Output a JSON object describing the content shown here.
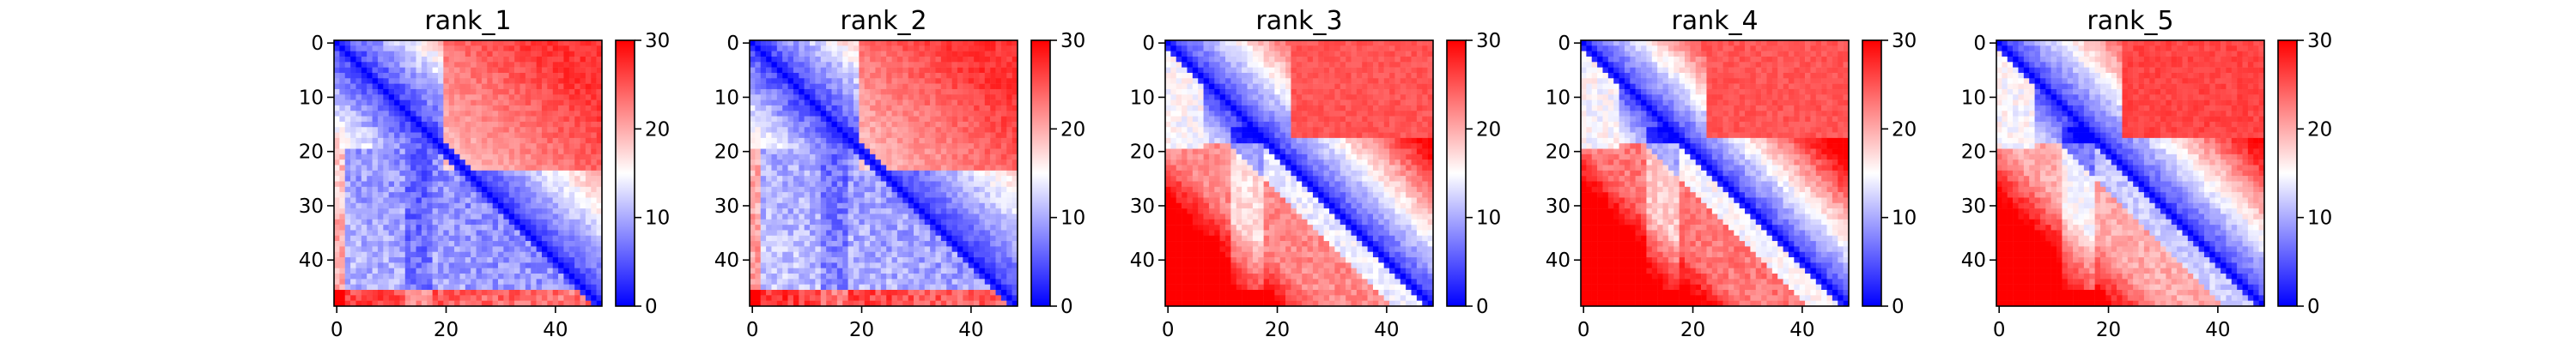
{
  "chart_data": [
    {
      "type": "heatmap",
      "title": "rank_1",
      "rows": 49,
      "cols": 49,
      "xlim": [
        0,
        48
      ],
      "ylim": [
        48,
        0
      ],
      "x_ticks": [
        0,
        20,
        40
      ],
      "y_ticks": [
        0,
        10,
        20,
        30,
        40
      ],
      "colorbar": {
        "min": 0,
        "max": 30,
        "ticks": [
          0,
          10,
          20,
          30
        ],
        "colormap": "bwr",
        "low_color": "#0000ff",
        "mid_color": "#ffffff",
        "high_color": "#ff0000"
      },
      "pattern": {
        "variant": 1,
        "block_size": 19,
        "far_value": 27,
        "near_value": 3,
        "bottom_left_value": 8
      }
    },
    {
      "type": "heatmap",
      "title": "rank_2",
      "rows": 49,
      "cols": 49,
      "xlim": [
        0,
        48
      ],
      "ylim": [
        48,
        0
      ],
      "x_ticks": [
        0,
        20,
        40
      ],
      "y_ticks": [
        0,
        10,
        20,
        30,
        40
      ],
      "colorbar": {
        "min": 0,
        "max": 30,
        "ticks": [
          0,
          10,
          20,
          30
        ],
        "colormap": "bwr",
        "low_color": "#0000ff",
        "mid_color": "#ffffff",
        "high_color": "#ff0000"
      },
      "pattern": {
        "variant": 2,
        "block_size": 19,
        "far_value": 27,
        "near_value": 3,
        "bottom_left_value": 9
      }
    },
    {
      "type": "heatmap",
      "title": "rank_3",
      "rows": 49,
      "cols": 49,
      "xlim": [
        0,
        48
      ],
      "ylim": [
        48,
        0
      ],
      "x_ticks": [
        0,
        20,
        40
      ],
      "y_ticks": [
        0,
        10,
        20,
        30,
        40
      ],
      "colorbar": {
        "min": 0,
        "max": 30,
        "ticks": [
          0,
          10,
          20,
          30
        ],
        "colormap": "bwr",
        "low_color": "#0000ff",
        "mid_color": "#ffffff",
        "high_color": "#ff0000"
      },
      "pattern": {
        "variant": 3,
        "block_size": 19,
        "far_value": 25,
        "near_value": 3,
        "bottom_left_value": 22
      }
    },
    {
      "type": "heatmap",
      "title": "rank_4",
      "rows": 49,
      "cols": 49,
      "xlim": [
        0,
        48
      ],
      "ylim": [
        48,
        0
      ],
      "x_ticks": [
        0,
        20,
        40
      ],
      "y_ticks": [
        0,
        10,
        20,
        30,
        40
      ],
      "colorbar": {
        "min": 0,
        "max": 30,
        "ticks": [
          0,
          10,
          20,
          30
        ],
        "colormap": "bwr",
        "low_color": "#0000ff",
        "mid_color": "#ffffff",
        "high_color": "#ff0000"
      },
      "pattern": {
        "variant": 4,
        "block_size": 19,
        "far_value": 25,
        "near_value": 3,
        "bottom_left_value": 23
      }
    },
    {
      "type": "heatmap",
      "title": "rank_5",
      "rows": 49,
      "cols": 49,
      "xlim": [
        0,
        48
      ],
      "ylim": [
        48,
        0
      ],
      "x_ticks": [
        0,
        20,
        40
      ],
      "y_ticks": [
        0,
        10,
        20,
        30,
        40
      ],
      "colorbar": {
        "min": 0,
        "max": 30,
        "ticks": [
          0,
          10,
          20,
          30
        ],
        "colormap": "bwr",
        "low_color": "#0000ff",
        "mid_color": "#ffffff",
        "high_color": "#ff0000"
      },
      "pattern": {
        "variant": 5,
        "block_size": 19,
        "far_value": 26,
        "near_value": 3,
        "bottom_left_value": 20
      }
    }
  ]
}
